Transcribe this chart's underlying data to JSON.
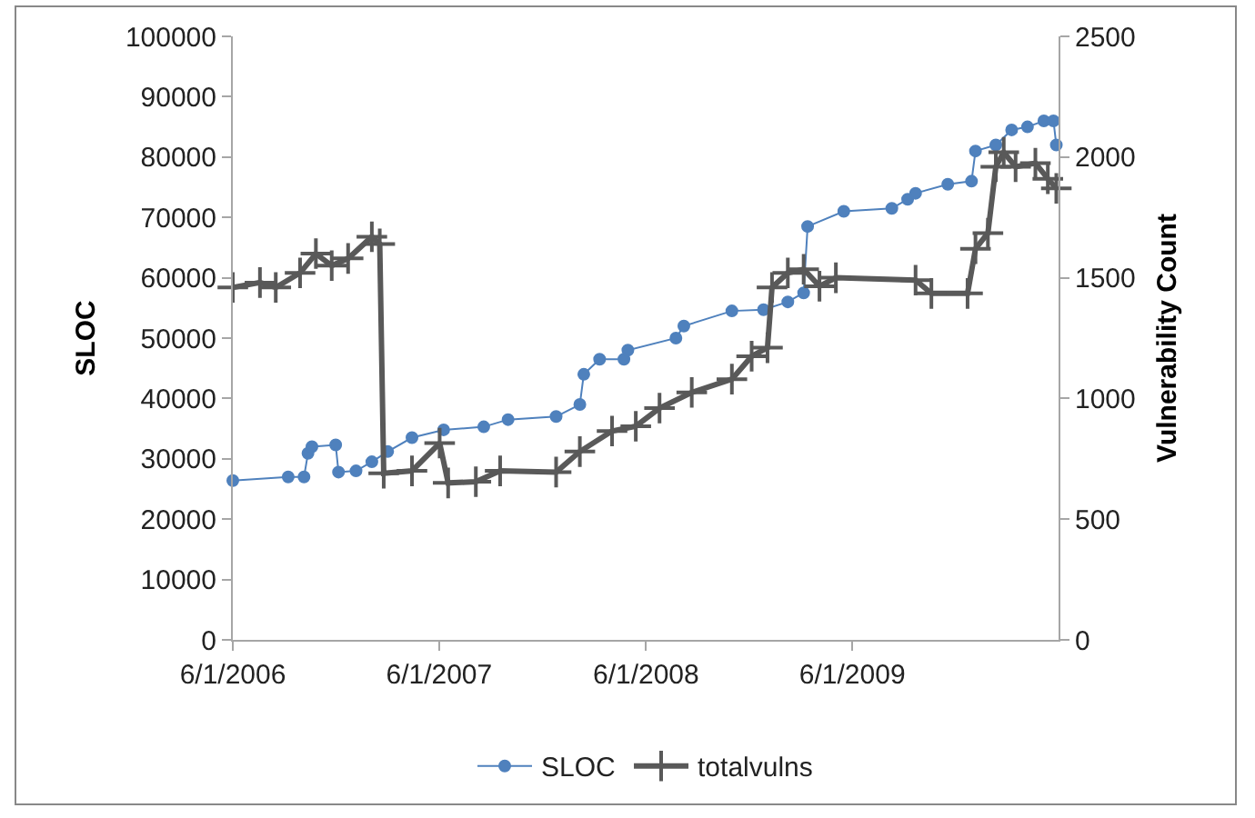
{
  "chart_data": {
    "type": "line",
    "ylabel": "SLOC",
    "y2label": "Vulnerability Count",
    "xlim": [
      "2006-06-01",
      "2010-06-01"
    ],
    "xticks": [
      {
        "value": "2006-06-01",
        "label": "6/1/2006"
      },
      {
        "value": "2007-06-01",
        "label": "6/1/2007"
      },
      {
        "value": "2008-06-01",
        "label": "6/1/2008"
      },
      {
        "value": "2009-06-01",
        "label": "6/1/2009"
      }
    ],
    "ylim": [
      0,
      100000
    ],
    "yticks": [
      0,
      10000,
      20000,
      30000,
      40000,
      50000,
      60000,
      70000,
      80000,
      90000,
      100000
    ],
    "y2lim": [
      0,
      2500
    ],
    "y2ticks": [
      0,
      500,
      1000,
      1500,
      2000,
      2500
    ],
    "grid": false,
    "legend": "bottom",
    "series": [
      {
        "name": "SLOC",
        "color": "#4f81bd",
        "marker": "circle",
        "x": [
          "2006-06-01",
          "2006-09-07",
          "2006-10-05",
          "2006-10-12",
          "2006-10-19",
          "2006-11-30",
          "2006-12-05",
          "2007-01-05",
          "2007-02-02",
          "2007-03-02",
          "2007-04-14",
          "2007-06-09",
          "2007-08-19",
          "2007-10-01",
          "2007-12-25",
          "2008-02-05",
          "2008-02-12",
          "2008-03-11",
          "2008-04-23",
          "2008-04-30",
          "2008-07-24",
          "2008-08-07",
          "2008-10-31",
          "2008-12-26",
          "2009-02-07",
          "2009-03-07",
          "2009-03-14",
          "2009-05-17",
          "2009-08-10",
          "2009-09-07",
          "2009-09-21",
          "2009-11-17",
          "2009-12-29",
          "2010-01-05",
          "2010-02-10",
          "2010-03-10",
          "2010-04-07",
          "2010-05-06",
          "2010-05-23",
          "2010-05-28"
        ],
        "values": [
          26400,
          27000,
          27000,
          30900,
          32000,
          32300,
          27800,
          28000,
          29500,
          31200,
          33500,
          34800,
          35300,
          36500,
          37000,
          39000,
          44000,
          46500,
          46500,
          48000,
          50000,
          52000,
          54500,
          54700,
          56000,
          57500,
          68500,
          71000,
          71500,
          73000,
          74000,
          75500,
          76000,
          81000,
          82000,
          84500,
          85000,
          86000,
          86000,
          82000
        ]
      },
      {
        "name": "totalvulns",
        "color": "#595959",
        "marker": "cross",
        "axis": "y2",
        "x": [
          "2006-06-01",
          "2006-07-19",
          "2006-08-16",
          "2006-09-28",
          "2006-10-26",
          "2006-11-23",
          "2006-12-22",
          "2007-02-02",
          "2007-02-16",
          "2007-02-23",
          "2007-04-14",
          "2007-06-02",
          "2007-06-17",
          "2007-08-05",
          "2007-09-17",
          "2007-12-25",
          "2008-02-05",
          "2008-04-02",
          "2008-05-14",
          "2008-06-25",
          "2008-08-21",
          "2008-10-31",
          "2008-12-05",
          "2009-01-02",
          "2009-01-10",
          "2009-02-07",
          "2009-03-07",
          "2009-04-04",
          "2009-05-03",
          "2009-09-21",
          "2009-10-19",
          "2009-12-22",
          "2010-01-05",
          "2010-01-27",
          "2010-02-10",
          "2010-02-24",
          "2010-03-17",
          "2010-04-21",
          "2010-05-13",
          "2010-05-28"
        ],
        "values": [
          1460,
          1480,
          1460,
          1520,
          1600,
          1550,
          1580,
          1670,
          1640,
          690,
          700,
          815,
          650,
          655,
          700,
          695,
          780,
          865,
          885,
          960,
          1025,
          1080,
          1175,
          1210,
          1460,
          1520,
          1535,
          1465,
          1500,
          1490,
          1435,
          1435,
          1620,
          1685,
          1960,
          2020,
          1960,
          1975,
          1910,
          1870
        ]
      }
    ]
  }
}
